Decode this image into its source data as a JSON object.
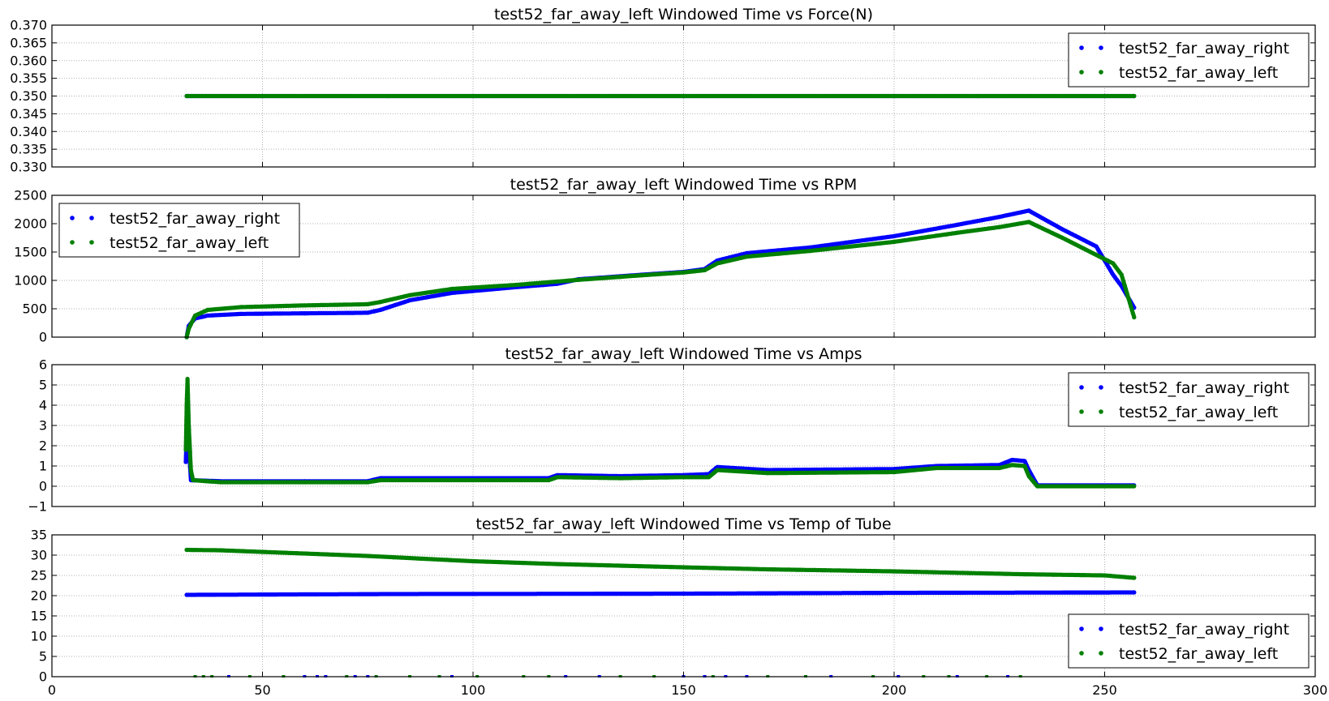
{
  "chart_data": [
    {
      "type": "scatter",
      "title": "test52_far_away_left Windowed Time vs Force(N)",
      "xlim": [
        0,
        300
      ],
      "ylim": [
        0.33,
        0.37
      ],
      "yticks": [
        0.33,
        0.335,
        0.34,
        0.345,
        0.35,
        0.355,
        0.36,
        0.365,
        0.37
      ],
      "ytick_labels": [
        "0.330",
        "0.335",
        "0.340",
        "0.345",
        "0.350",
        "0.355",
        "0.360",
        "0.365",
        "0.370"
      ],
      "grid": true,
      "legend": "top-right",
      "series": [
        {
          "name": "test52_far_away_right",
          "color": "#0000ff",
          "points": [
            [
              32,
              0.35
            ],
            [
              80,
              0.35
            ],
            [
              150,
              0.35
            ],
            [
              220,
              0.35
            ],
            [
              257,
              0.35
            ]
          ]
        },
        {
          "name": "test52_far_away_left",
          "color": "#008000",
          "points": [
            [
              32,
              0.35
            ],
            [
              80,
              0.35
            ],
            [
              150,
              0.35
            ],
            [
              220,
              0.35
            ],
            [
              257,
              0.35
            ]
          ]
        }
      ]
    },
    {
      "type": "scatter",
      "title": "test52_far_away_left Windowed Time vs RPM",
      "xlim": [
        0,
        300
      ],
      "ylim": [
        0,
        2500
      ],
      "yticks": [
        0,
        500,
        1000,
        1500,
        2000,
        2500
      ],
      "ytick_labels": [
        "0",
        "500",
        "1000",
        "1500",
        "2000",
        "2500"
      ],
      "grid": true,
      "legend": "top-left",
      "series": [
        {
          "name": "test52_far_away_right",
          "color": "#0000ff",
          "points": [
            [
              32,
              0
            ],
            [
              32.5,
              200
            ],
            [
              34,
              330
            ],
            [
              37,
              380
            ],
            [
              45,
              410
            ],
            [
              60,
              420
            ],
            [
              75,
              430
            ],
            [
              78,
              480
            ],
            [
              85,
              650
            ],
            [
              95,
              780
            ],
            [
              110,
              880
            ],
            [
              120,
              940
            ],
            [
              125,
              1020
            ],
            [
              140,
              1100
            ],
            [
              150,
              1150
            ],
            [
              155,
              1200
            ],
            [
              158,
              1350
            ],
            [
              165,
              1480
            ],
            [
              180,
              1580
            ],
            [
              200,
              1780
            ],
            [
              215,
              1980
            ],
            [
              225,
              2120
            ],
            [
              232,
              2230
            ],
            [
              240,
              1900
            ],
            [
              248,
              1600
            ],
            [
              252,
              1100
            ],
            [
              254,
              900
            ],
            [
              257,
              520
            ]
          ]
        },
        {
          "name": "test52_far_away_left",
          "color": "#008000",
          "points": [
            [
              32,
              0
            ],
            [
              32.5,
              150
            ],
            [
              34,
              380
            ],
            [
              37,
              480
            ],
            [
              45,
              530
            ],
            [
              60,
              560
            ],
            [
              75,
              580
            ],
            [
              78,
              620
            ],
            [
              85,
              740
            ],
            [
              95,
              850
            ],
            [
              110,
              920
            ],
            [
              120,
              980
            ],
            [
              125,
              1010
            ],
            [
              140,
              1090
            ],
            [
              150,
              1140
            ],
            [
              155,
              1180
            ],
            [
              158,
              1300
            ],
            [
              165,
              1420
            ],
            [
              180,
              1520
            ],
            [
              200,
              1680
            ],
            [
              215,
              1840
            ],
            [
              225,
              1940
            ],
            [
              232,
              2030
            ],
            [
              240,
              1750
            ],
            [
              248,
              1450
            ],
            [
              252,
              1300
            ],
            [
              254,
              1100
            ],
            [
              257,
              350
            ]
          ]
        }
      ]
    },
    {
      "type": "scatter",
      "title": "test52_far_away_left Windowed Time vs Amps",
      "xlim": [
        0,
        300
      ],
      "ylim": [
        -1,
        6
      ],
      "yticks": [
        -1,
        0,
        1,
        2,
        3,
        4,
        5,
        6
      ],
      "ytick_labels": [
        "−1",
        "0",
        "1",
        "2",
        "3",
        "4",
        "5",
        "6"
      ],
      "grid": true,
      "legend": "top-right",
      "series": [
        {
          "name": "test52_far_away_right",
          "color": "#0000ff",
          "points": [
            [
              31.8,
              1.2
            ],
            [
              32,
              3.0
            ],
            [
              32.2,
              4.6
            ],
            [
              32.5,
              2.0
            ],
            [
              33,
              0.3
            ],
            [
              40,
              0.25
            ],
            [
              60,
              0.25
            ],
            [
              75,
              0.25
            ],
            [
              78,
              0.4
            ],
            [
              100,
              0.4
            ],
            [
              118,
              0.4
            ],
            [
              120,
              0.55
            ],
            [
              135,
              0.5
            ],
            [
              150,
              0.55
            ],
            [
              156,
              0.6
            ],
            [
              158,
              0.95
            ],
            [
              170,
              0.8
            ],
            [
              200,
              0.85
            ],
            [
              210,
              1.0
            ],
            [
              225,
              1.05
            ],
            [
              228,
              1.3
            ],
            [
              231,
              1.25
            ],
            [
              232,
              0.8
            ],
            [
              234,
              0.05
            ],
            [
              257,
              0.05
            ]
          ]
        },
        {
          "name": "test52_far_away_left",
          "color": "#008000",
          "points": [
            [
              31.8,
              1.8
            ],
            [
              32,
              4.0
            ],
            [
              32.2,
              5.3
            ],
            [
              32.5,
              3.0
            ],
            [
              33,
              0.8
            ],
            [
              33.5,
              0.3
            ],
            [
              40,
              0.2
            ],
            [
              60,
              0.2
            ],
            [
              75,
              0.2
            ],
            [
              78,
              0.3
            ],
            [
              100,
              0.3
            ],
            [
              118,
              0.3
            ],
            [
              120,
              0.45
            ],
            [
              135,
              0.4
            ],
            [
              150,
              0.45
            ],
            [
              156,
              0.45
            ],
            [
              158,
              0.8
            ],
            [
              170,
              0.65
            ],
            [
              200,
              0.7
            ],
            [
              210,
              0.9
            ],
            [
              225,
              0.9
            ],
            [
              228,
              1.05
            ],
            [
              231,
              1.0
            ],
            [
              232,
              0.5
            ],
            [
              234,
              0.0
            ],
            [
              257,
              0.0
            ]
          ]
        }
      ]
    },
    {
      "type": "scatter",
      "title": "test52_far_away_left Windowed Time vs Temp of Tube",
      "xlim": [
        0,
        300
      ],
      "ylim": [
        0,
        35
      ],
      "xticks": [
        0,
        50,
        100,
        150,
        200,
        250,
        300
      ],
      "yticks": [
        0,
        5,
        10,
        15,
        20,
        25,
        30,
        35
      ],
      "ytick_labels": [
        "0",
        "5",
        "10",
        "15",
        "20",
        "25",
        "30",
        "35"
      ],
      "grid": true,
      "legend": "bottom-right",
      "series": [
        {
          "name": "test52_far_away_right",
          "color": "#0000ff",
          "points": [
            [
              32,
              20.2
            ],
            [
              80,
              20.4
            ],
            [
              150,
              20.5
            ],
            [
              200,
              20.7
            ],
            [
              257,
              20.8
            ]
          ],
          "outliers": [
            [
              42,
              0
            ],
            [
              60,
              0
            ],
            [
              63,
              0
            ],
            [
              65,
              0
            ],
            [
              72,
              0
            ],
            [
              75,
              0
            ],
            [
              95,
              0
            ],
            [
              122,
              0
            ],
            [
              130,
              0
            ],
            [
              150,
              0
            ],
            [
              155,
              0
            ],
            [
              160,
              0
            ],
            [
              165,
              0
            ],
            [
              185,
              0
            ],
            [
              201,
              0
            ],
            [
              215,
              0
            ],
            [
              227,
              0
            ]
          ]
        },
        {
          "name": "test52_far_away_left",
          "color": "#008000",
          "points": [
            [
              32,
              31.3
            ],
            [
              40,
              31.2
            ],
            [
              50,
              30.8
            ],
            [
              75,
              29.8
            ],
            [
              100,
              28.5
            ],
            [
              120,
              27.8
            ],
            [
              150,
              27.0
            ],
            [
              170,
              26.5
            ],
            [
              200,
              26.0
            ],
            [
              230,
              25.3
            ],
            [
              250,
              25.0
            ],
            [
              257,
              24.4
            ]
          ],
          "outliers": [
            [
              34,
              0
            ],
            [
              36,
              0
            ],
            [
              38,
              0
            ],
            [
              47,
              0
            ],
            [
              55,
              0
            ],
            [
              70,
              0
            ],
            [
              77,
              0
            ],
            [
              85,
              0
            ],
            [
              92,
              0
            ],
            [
              101,
              0
            ],
            [
              112,
              0
            ],
            [
              118,
              0
            ],
            [
              135,
              0
            ],
            [
              143,
              0
            ],
            [
              157,
              0
            ],
            [
              170,
              0
            ],
            [
              179,
              0
            ],
            [
              195,
              0
            ],
            [
              207,
              0
            ],
            [
              213,
              0
            ],
            [
              222,
              0
            ],
            [
              230,
              0
            ]
          ]
        }
      ]
    }
  ]
}
